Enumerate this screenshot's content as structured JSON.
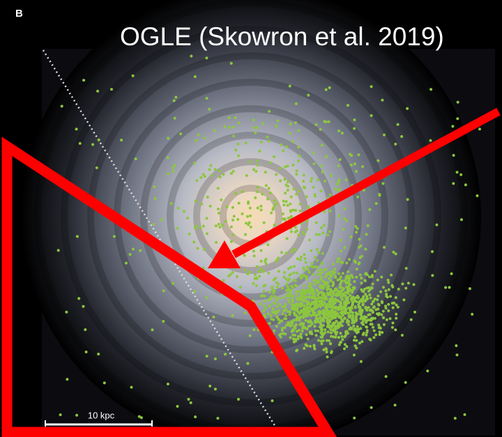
{
  "panel_label": "B",
  "title": "OGLE (Skowron et al. 2019)",
  "scale_bar_label": "10 kpc"
}
